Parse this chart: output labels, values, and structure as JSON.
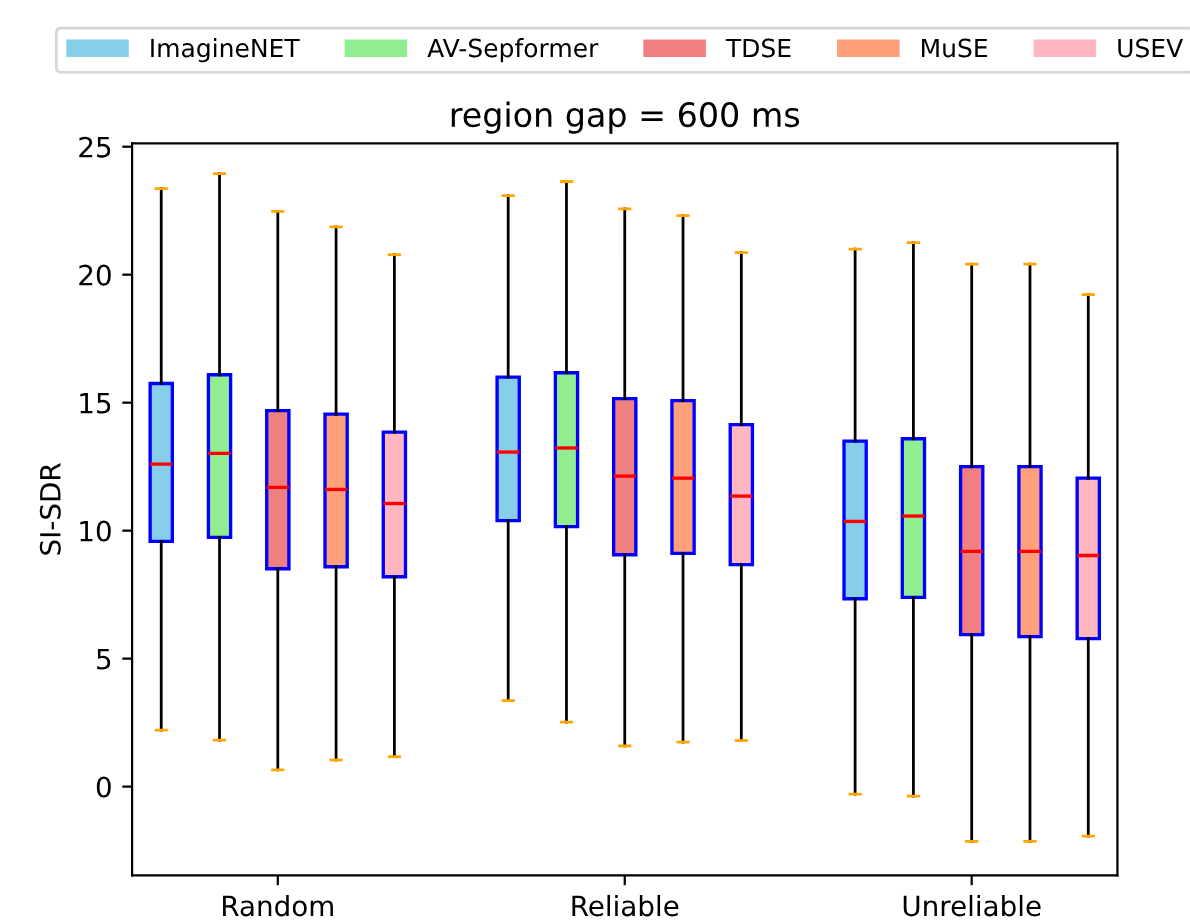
{
  "chart_data": {
    "type": "box",
    "title": "region gap = 600 ms",
    "ylabel": "SI-SDR",
    "categories": [
      "Random",
      "Reliable",
      "Unreliable"
    ],
    "ylim": [
      -3.47,
      25.13
    ],
    "yticks": [
      0,
      5,
      10,
      15,
      20,
      25
    ],
    "grid": false,
    "legend": "top",
    "series": [
      {
        "name": "ImagineNET",
        "color": "#87ceeb",
        "boxes": [
          {
            "low": 2.21,
            "q1": 9.58,
            "median": 12.6,
            "q3": 15.75,
            "high": 23.36
          },
          {
            "low": 3.36,
            "q1": 10.39,
            "median": 13.07,
            "q3": 16.0,
            "high": 23.09
          },
          {
            "low": -0.29,
            "q1": 7.34,
            "median": 10.36,
            "q3": 13.5,
            "high": 21.0
          }
        ]
      },
      {
        "name": "AV-Sepformer",
        "color": "#90ee90",
        "boxes": [
          {
            "low": 1.82,
            "q1": 9.74,
            "median": 13.02,
            "q3": 16.09,
            "high": 23.95
          },
          {
            "low": 2.52,
            "q1": 10.16,
            "median": 13.23,
            "q3": 16.17,
            "high": 23.64
          },
          {
            "low": -0.37,
            "q1": 7.39,
            "median": 10.57,
            "q3": 13.59,
            "high": 21.25
          }
        ]
      },
      {
        "name": "TDSE",
        "color": "#f08080",
        "boxes": [
          {
            "low": 0.65,
            "q1": 8.51,
            "median": 11.69,
            "q3": 14.69,
            "high": 22.47
          },
          {
            "low": 1.59,
            "q1": 9.06,
            "median": 12.13,
            "q3": 15.16,
            "high": 22.57
          },
          {
            "low": -2.14,
            "q1": 5.94,
            "median": 9.19,
            "q3": 12.5,
            "high": 20.41
          }
        ]
      },
      {
        "name": "MuSE",
        "color": "#ffa07a",
        "boxes": [
          {
            "low": 1.04,
            "q1": 8.59,
            "median": 11.61,
            "q3": 14.55,
            "high": 21.87
          },
          {
            "low": 1.74,
            "q1": 9.11,
            "median": 12.05,
            "q3": 15.08,
            "high": 22.31
          },
          {
            "low": -2.14,
            "q1": 5.86,
            "median": 9.19,
            "q3": 12.5,
            "high": 20.41
          }
        ]
      },
      {
        "name": "USEV",
        "color": "#ffb6c1",
        "boxes": [
          {
            "low": 1.17,
            "q1": 8.2,
            "median": 11.06,
            "q3": 13.85,
            "high": 20.78
          },
          {
            "low": 1.8,
            "q1": 8.67,
            "median": 11.35,
            "q3": 14.14,
            "high": 20.86
          },
          {
            "low": -1.93,
            "q1": 5.78,
            "median": 9.03,
            "q3": 12.05,
            "high": 19.22
          }
        ]
      }
    ]
  }
}
